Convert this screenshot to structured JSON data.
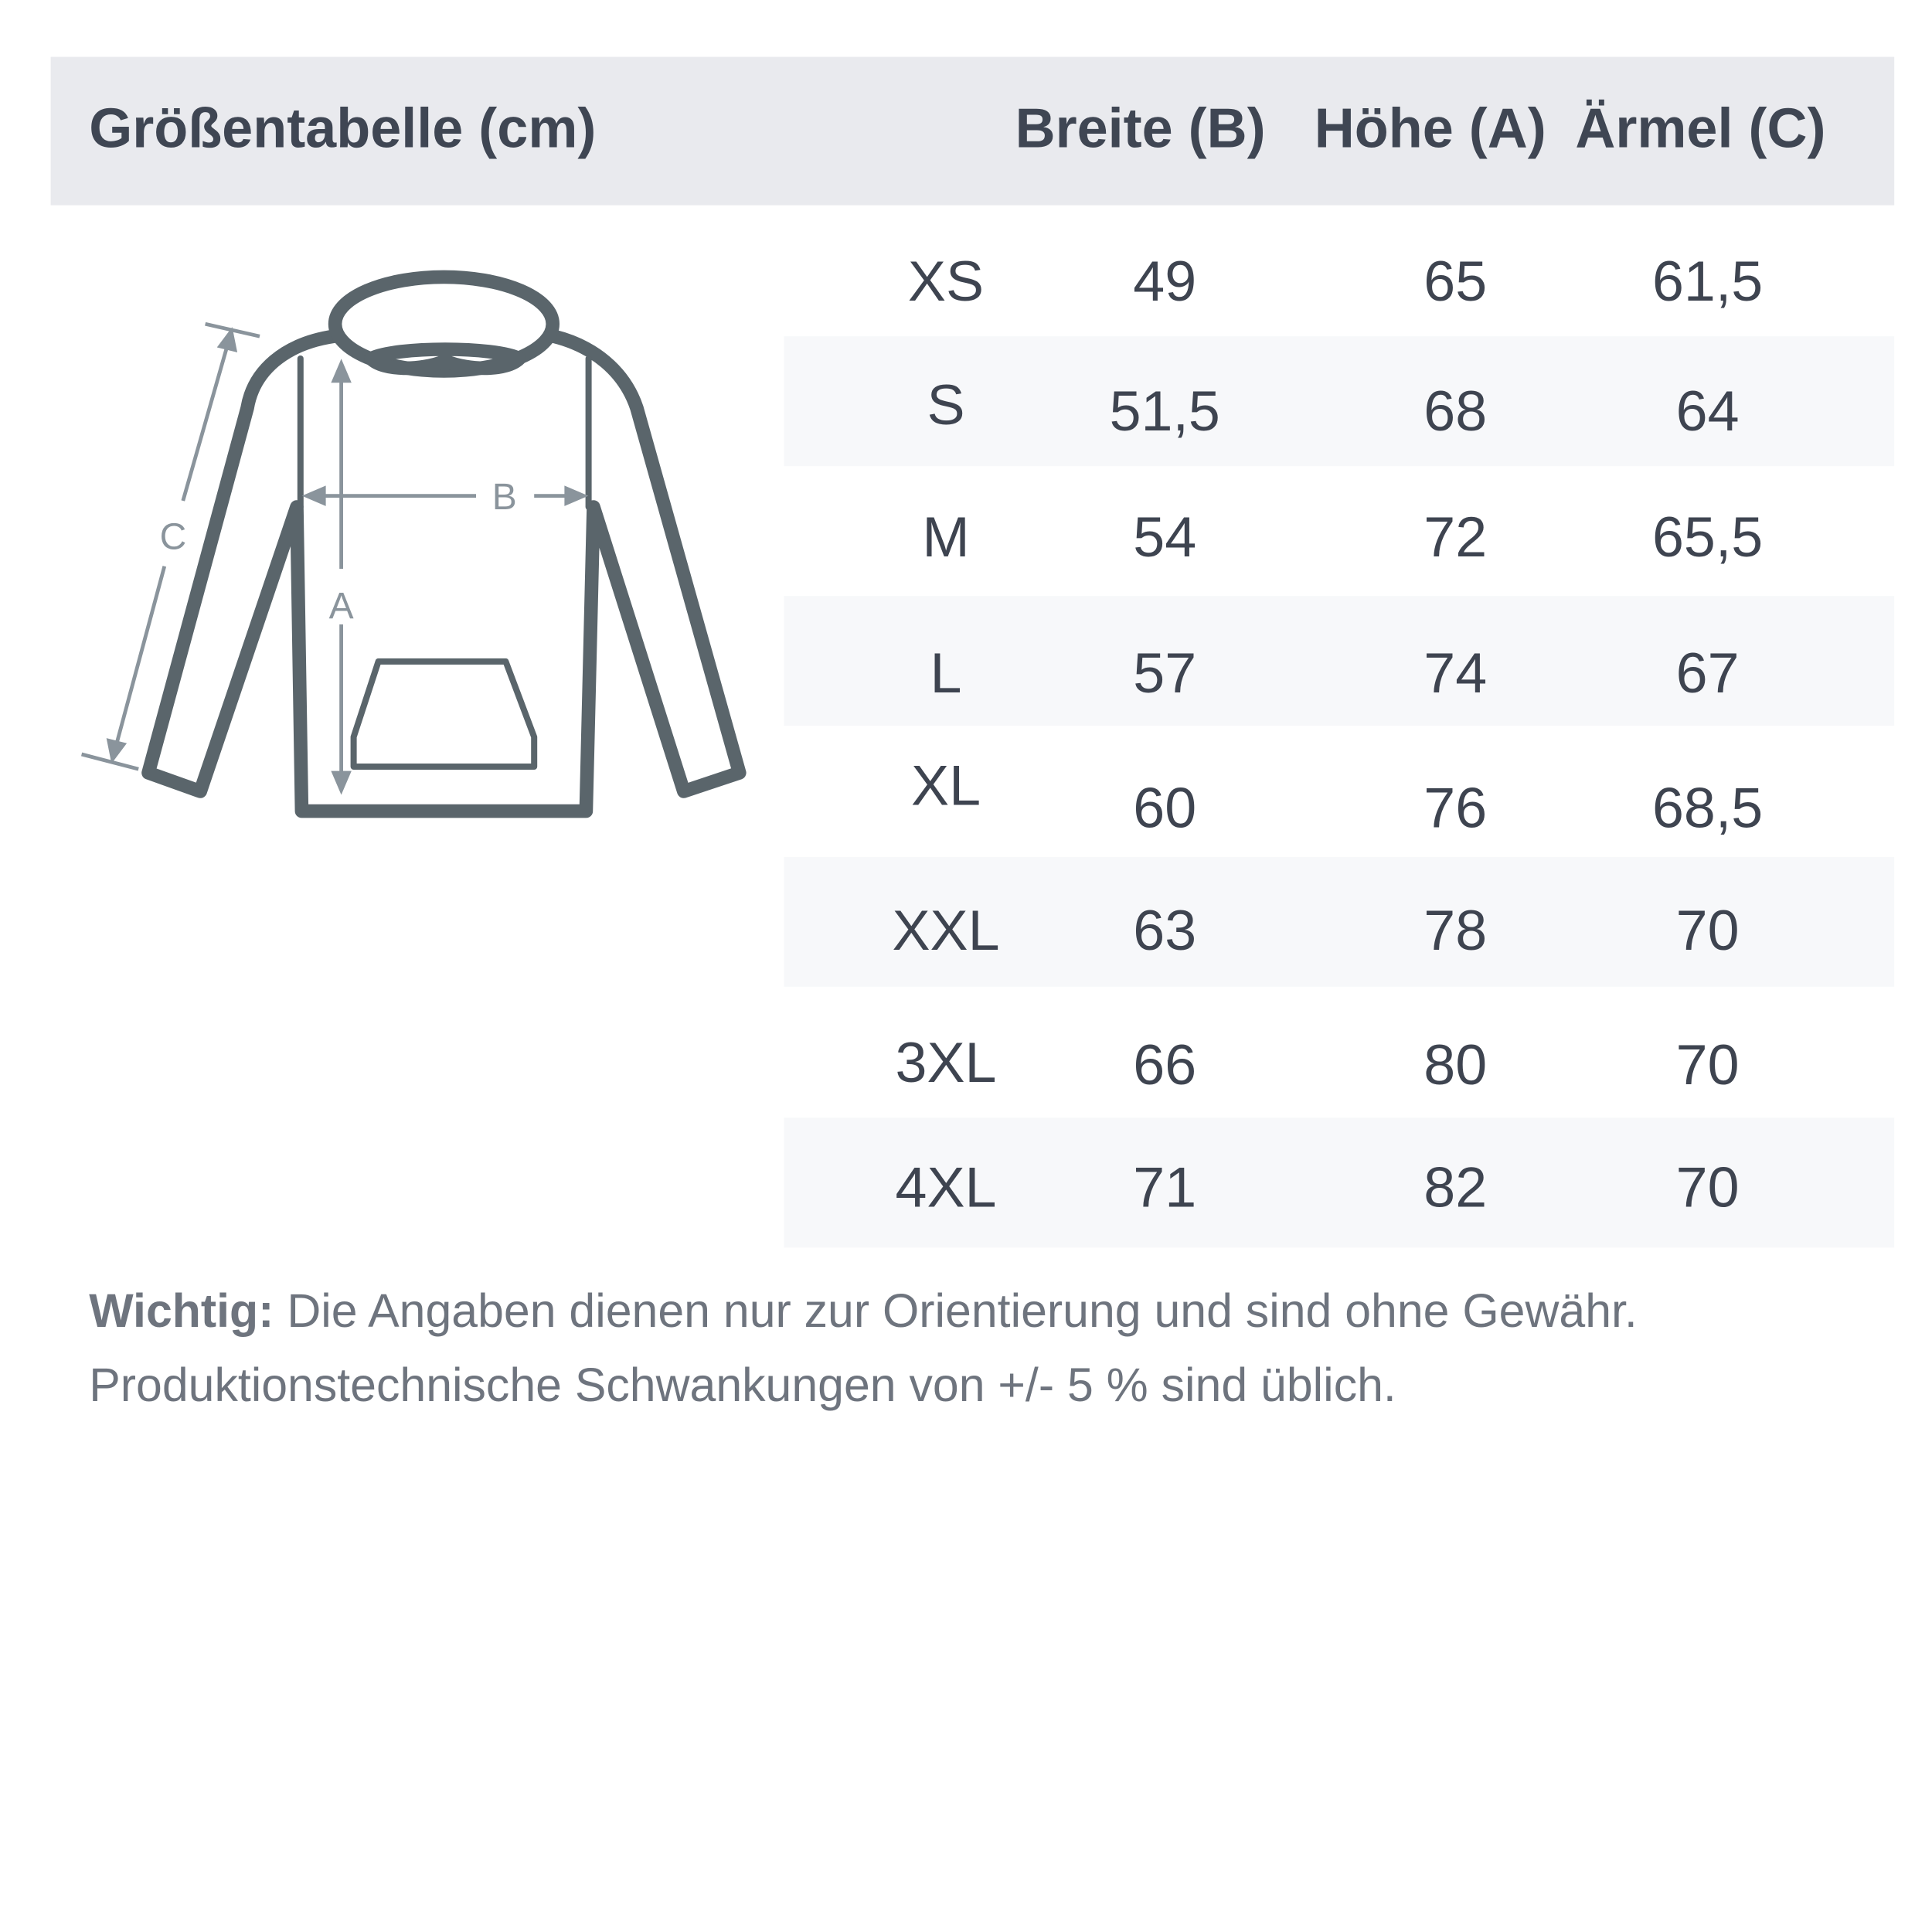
{
  "header": {
    "title": "Größentabelle (cm)",
    "columns": [
      "Breite (B)",
      "Höhe (A)",
      "Ärmel (C)"
    ]
  },
  "diagram": {
    "labels": {
      "a": "A",
      "b": "B",
      "c": "C"
    },
    "stroke_color": "#5a656b",
    "arrow_color": "#8a949c"
  },
  "rows": [
    {
      "size": "XS",
      "b": "49",
      "a": "65",
      "c": "61,5"
    },
    {
      "size": "S",
      "b": "51,5",
      "a": "68",
      "c": "64"
    },
    {
      "size": "M",
      "b": "54",
      "a": "72",
      "c": "65,5"
    },
    {
      "size": "L",
      "b": "57",
      "a": "74",
      "c": "67"
    },
    {
      "size": "XL",
      "b": "60",
      "a": "76",
      "c": "68,5"
    },
    {
      "size": "XXL",
      "b": "63",
      "a": "78",
      "c": "70"
    },
    {
      "size": "3XL",
      "b": "66",
      "a": "80",
      "c": "70"
    },
    {
      "size": "4XL",
      "b": "71",
      "a": "82",
      "c": "70"
    }
  ],
  "note": {
    "bold": "Wichtig:",
    "line1": " Die Angaben dienen nur zur Orientierung und sind ohne Gewähr.",
    "line2": "Produktionstechnische Schwankungen von +/- 5 % sind üblich."
  }
}
